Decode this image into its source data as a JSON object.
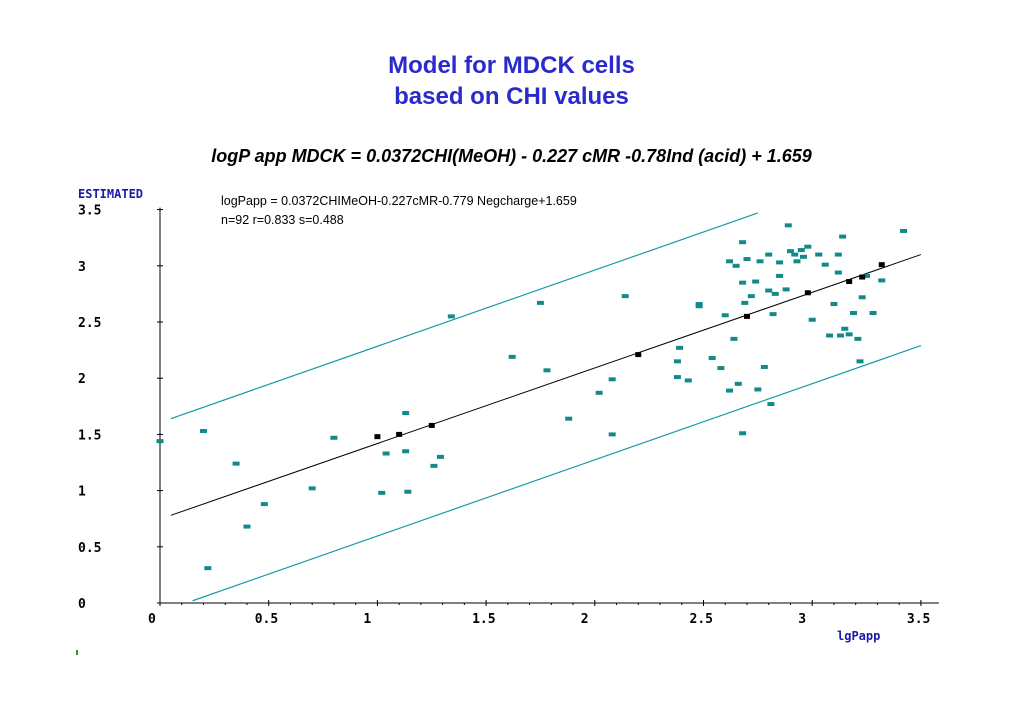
{
  "title_line1": "Model for MDCK cells",
  "title_line2": "based on CHI values",
  "equation": "logP app MDCK = 0.0372CHI(MeOH) - 0.227 cMR -0.78Ind (acid) + 1.659",
  "colors": {
    "title": "#2b2bcc",
    "band": "#1a9aa8",
    "point": "#128a8a",
    "fit_point": "#000000",
    "axis_label": "#1a1aaa"
  },
  "chart_data": {
    "type": "scatter",
    "xlabel": "lgPapp",
    "ylabel": "ESTIMATED",
    "xlim": [
      0,
      3.5
    ],
    "ylim": [
      0,
      3.5
    ],
    "x_ticks": [
      "0",
      "0.5",
      "1",
      "1.5",
      "2",
      "2.5",
      "3",
      "3.5"
    ],
    "y_ticks": [
      "0",
      "0.5",
      "1",
      "1.5",
      "2",
      "2.5",
      "3",
      "3.5"
    ],
    "annotation_line1": "logPapp = 0.0372CHIMeOH-0.227cMR-0.779 Negcharge+1.659",
    "annotation_line2": "n=92   r=0.833   s=0.488",
    "regression_line": {
      "x": [
        0.05,
        3.5
      ],
      "y": [
        0.78,
        3.1
      ]
    },
    "upper_band": {
      "x": [
        0.05,
        2.75
      ],
      "y": [
        1.64,
        3.47
      ]
    },
    "lower_band": {
      "x": [
        0.15,
        3.5
      ],
      "y": [
        0.02,
        2.29
      ]
    },
    "fit_points": [
      [
        1.0,
        1.48
      ],
      [
        1.1,
        1.5
      ],
      [
        1.25,
        1.58
      ],
      [
        2.2,
        2.21
      ],
      [
        2.7,
        2.55
      ],
      [
        2.98,
        2.76
      ],
      [
        3.17,
        2.86
      ],
      [
        3.23,
        2.9
      ],
      [
        3.32,
        3.01
      ]
    ],
    "points": [
      [
        0.0,
        1.44
      ],
      [
        0.2,
        1.53
      ],
      [
        0.22,
        0.31
      ],
      [
        0.35,
        1.24
      ],
      [
        0.4,
        0.68
      ],
      [
        0.48,
        0.88
      ],
      [
        0.7,
        1.02
      ],
      [
        0.8,
        1.47
      ],
      [
        1.02,
        0.98
      ],
      [
        1.04,
        1.33
      ],
      [
        1.13,
        1.35
      ],
      [
        1.13,
        1.69
      ],
      [
        1.14,
        0.99
      ],
      [
        1.26,
        1.22
      ],
      [
        1.29,
        1.3
      ],
      [
        1.34,
        2.55
      ],
      [
        1.62,
        2.19
      ],
      [
        1.75,
        2.67
      ],
      [
        1.78,
        2.07
      ],
      [
        1.88,
        1.64
      ],
      [
        2.02,
        1.87
      ],
      [
        2.08,
        1.99
      ],
      [
        2.08,
        1.5
      ],
      [
        2.14,
        2.73
      ],
      [
        2.38,
        2.15
      ],
      [
        2.38,
        2.01
      ],
      [
        2.39,
        2.27
      ],
      [
        2.43,
        1.98
      ],
      [
        2.48,
        2.66
      ],
      [
        2.48,
        2.64
      ],
      [
        2.54,
        2.18
      ],
      [
        2.58,
        2.09
      ],
      [
        2.6,
        2.56
      ],
      [
        2.62,
        1.89
      ],
      [
        2.62,
        3.04
      ],
      [
        2.64,
        2.35
      ],
      [
        2.65,
        3.0
      ],
      [
        2.66,
        1.95
      ],
      [
        2.68,
        1.51
      ],
      [
        2.68,
        3.21
      ],
      [
        2.68,
        2.85
      ],
      [
        2.69,
        2.67
      ],
      [
        2.7,
        3.06
      ],
      [
        2.72,
        2.73
      ],
      [
        2.74,
        2.86
      ],
      [
        2.75,
        1.9
      ],
      [
        2.76,
        3.04
      ],
      [
        2.78,
        2.1
      ],
      [
        2.8,
        2.78
      ],
      [
        2.8,
        3.1
      ],
      [
        2.81,
        1.77
      ],
      [
        2.82,
        2.57
      ],
      [
        2.83,
        2.75
      ],
      [
        2.85,
        2.91
      ],
      [
        2.85,
        3.03
      ],
      [
        2.88,
        2.79
      ],
      [
        2.89,
        3.36
      ],
      [
        2.9,
        3.13
      ],
      [
        2.92,
        3.1
      ],
      [
        2.93,
        3.04
      ],
      [
        2.95,
        3.14
      ],
      [
        2.96,
        3.08
      ],
      [
        2.98,
        3.17
      ],
      [
        3.0,
        2.52
      ],
      [
        3.03,
        3.1
      ],
      [
        3.06,
        3.01
      ],
      [
        3.08,
        2.38
      ],
      [
        3.1,
        2.66
      ],
      [
        3.12,
        2.94
      ],
      [
        3.12,
        3.1
      ],
      [
        3.13,
        2.38
      ],
      [
        3.14,
        3.26
      ],
      [
        3.15,
        2.44
      ],
      [
        3.17,
        2.39
      ],
      [
        3.19,
        2.58
      ],
      [
        3.21,
        2.35
      ],
      [
        3.22,
        2.15
      ],
      [
        3.23,
        2.72
      ],
      [
        3.25,
        2.91
      ],
      [
        3.28,
        2.58
      ],
      [
        3.32,
        2.87
      ],
      [
        3.42,
        3.31
      ]
    ]
  }
}
